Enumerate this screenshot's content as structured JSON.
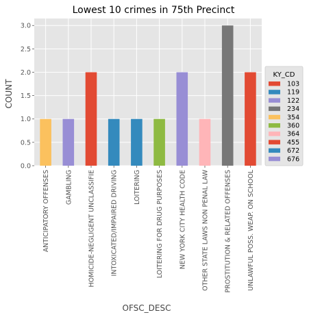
{
  "chart_data": {
    "type": "bar",
    "title": "Lowest 10 crimes in 75th Precinct",
    "xlabel": "OFSC_DESC",
    "ylabel": "COUNT",
    "ylim": [
      0,
      3.15
    ],
    "yticks": [
      "0.0",
      "0.5",
      "1.0",
      "1.5",
      "2.0",
      "2.5",
      "3.0"
    ],
    "grid": true,
    "legend_placement": "right",
    "background": "#e5e5e5",
    "categories": [
      "ANTICIPATORY OFFENSES",
      "GAMBLING",
      "HOMICIDE-NEGLIGENT UNCLASSIFIE",
      "INTOXICATED/IMPAIRED DRIVING",
      "LOITERING",
      "LOITERING FOR DRUG PURPOSES",
      "NEW YORK CITY HEALTH CODE",
      "OTHER STATE LAWS NON PENAL LAW",
      "PROSTITUTION & RELATED OFFENSES",
      "UNLAWFUL POSS. WEAP. ON SCHOOL"
    ],
    "values": [
      1,
      1,
      2,
      1,
      1,
      1,
      2,
      1,
      3,
      2
    ],
    "bar_series": [
      "354",
      "676",
      "103",
      "672",
      "119",
      "360",
      "122",
      "364",
      "234",
      "455"
    ],
    "legend": {
      "title": "KY_CD",
      "entries": [
        {
          "label": "103",
          "color": "#E24A33"
        },
        {
          "label": "119",
          "color": "#348ABD"
        },
        {
          "label": "122",
          "color": "#988ED5"
        },
        {
          "label": "234",
          "color": "#777777"
        },
        {
          "label": "354",
          "color": "#FBC15E"
        },
        {
          "label": "360",
          "color": "#8EBA42"
        },
        {
          "label": "364",
          "color": "#FFB5B8"
        },
        {
          "label": "455",
          "color": "#E24A33"
        },
        {
          "label": "672",
          "color": "#348ABD"
        },
        {
          "label": "676",
          "color": "#988ED5"
        }
      ]
    }
  }
}
